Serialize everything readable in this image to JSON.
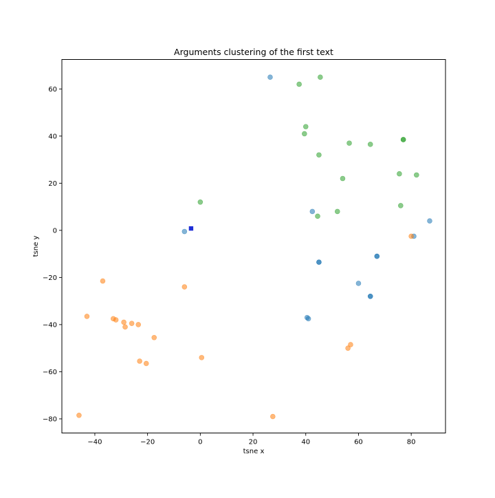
{
  "chart_data": {
    "type": "scatter",
    "title": "Arguments clustering of the first text",
    "xlabel": "tsne x",
    "ylabel": "tsne y",
    "xlim": [
      -52.5,
      93
    ],
    "ylim": [
      -86,
      72.5
    ],
    "xticks": [
      -40,
      -20,
      0,
      20,
      40,
      60,
      80
    ],
    "yticks": [
      -80,
      -60,
      -40,
      -20,
      0,
      20,
      40,
      60
    ],
    "grid": false,
    "legend": "none",
    "series": [
      {
        "color": "#1f77b4",
        "alpha": 0.55,
        "points": [
          {
            "x": 26.5,
            "y": 65
          },
          {
            "x": -6,
            "y": -0.5
          },
          {
            "x": 42.5,
            "y": 8
          },
          {
            "x": 45,
            "y": -13.5
          },
          {
            "x": 45,
            "y": -13.5
          },
          {
            "x": 67,
            "y": -11
          },
          {
            "x": 67,
            "y": -11
          },
          {
            "x": 60,
            "y": -22.5
          },
          {
            "x": 64.5,
            "y": -28
          },
          {
            "x": 64.5,
            "y": -28
          },
          {
            "x": 40.5,
            "y": -37
          },
          {
            "x": 41,
            "y": -37.5
          },
          {
            "x": 81,
            "y": -2.5
          },
          {
            "x": 87,
            "y": 4
          }
        ]
      },
      {
        "color": "#ff7f0e",
        "alpha": 0.55,
        "points": [
          {
            "x": -37,
            "y": -21.5
          },
          {
            "x": -43,
            "y": -36.5
          },
          {
            "x": -6,
            "y": -24
          },
          {
            "x": -33,
            "y": -37.5
          },
          {
            "x": -32,
            "y": -38
          },
          {
            "x": -29,
            "y": -39
          },
          {
            "x": -28.5,
            "y": -41
          },
          {
            "x": -26,
            "y": -39.5
          },
          {
            "x": -23.5,
            "y": -40
          },
          {
            "x": -17.5,
            "y": -45.5
          },
          {
            "x": -23,
            "y": -55.5
          },
          {
            "x": -20.5,
            "y": -56.5
          },
          {
            "x": 0.5,
            "y": -54
          },
          {
            "x": 57,
            "y": -48.5
          },
          {
            "x": 56,
            "y": -50
          },
          {
            "x": 80,
            "y": -2.5
          },
          {
            "x": -46,
            "y": -78.5
          },
          {
            "x": 27.5,
            "y": -79
          }
        ]
      },
      {
        "color": "#2ca02c",
        "alpha": 0.55,
        "points": [
          {
            "x": 37.5,
            "y": 62
          },
          {
            "x": 45.5,
            "y": 65
          },
          {
            "x": 40,
            "y": 44
          },
          {
            "x": 39.5,
            "y": 41
          },
          {
            "x": 45,
            "y": 32
          },
          {
            "x": 56.5,
            "y": 37
          },
          {
            "x": 64.5,
            "y": 36.5
          },
          {
            "x": 77,
            "y": 38.5
          },
          {
            "x": 77,
            "y": 38.5
          },
          {
            "x": 75.5,
            "y": 24
          },
          {
            "x": 82,
            "y": 23.5
          },
          {
            "x": 54,
            "y": 22
          },
          {
            "x": 76,
            "y": 10.5
          },
          {
            "x": 52,
            "y": 8
          },
          {
            "x": 44.5,
            "y": 6
          },
          {
            "x": 0,
            "y": 12
          }
        ]
      }
    ],
    "highlight": {
      "x": -3.5,
      "y": 0.8,
      "color": "#1f2fd6",
      "marker": "square"
    }
  }
}
